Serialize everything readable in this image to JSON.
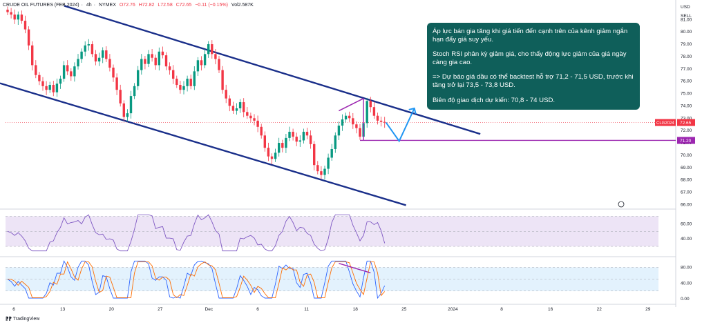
{
  "header": {
    "symbol": "CRUDE OIL FUTURES (FEB 2024)",
    "interval": "4h",
    "exchange": "NYMEX",
    "open": "O72.76",
    "high": "H72.82",
    "low": "L72.58",
    "close": "C72.65",
    "change": "−0.11 (−0.15%)",
    "volume": "Vol2.587K"
  },
  "axis_units": {
    "currency": "USD",
    "action": "SELL"
  },
  "annotation": {
    "p1": "Áp lực bán gia tăng khi giá tiến đến cạnh trên của kênh giảm ngắn hạn đẩy giá suy yếu.",
    "p2": "Stoch RSI phân kỳ giảm giá, cho thấy động lực giảm của giá ngày càng gia cao.",
    "p3": "=> Dự báo giá dầu có thể backtest hỗ trợ 71,2 - 71,5 USD, trước khi tăng trở lại 73,5 - 73,8 USD.",
    "p4": "Biên độ giao dịch dự kiến: 70,8 - 74 USD."
  },
  "footer": {
    "brand": "TradingView"
  },
  "colors": {
    "up": "#089981",
    "down": "#f23645",
    "channel": "#1a2f8a",
    "support": "#9c27b0",
    "forecast": "#2196f3",
    "rsi_band": "#ede4f6",
    "rsi_line": "#7e57c2",
    "stoch_band": "#e3f2fd",
    "stoch_k": "#2962ff",
    "stoch_d": "#ff6d00",
    "annotation_bg": "#0f5f5a"
  },
  "chart_data": {
    "type": "candlestick",
    "y_axis": {
      "ticks": [
        "81.00",
        "80.00",
        "79.00",
        "78.00",
        "77.00",
        "76.00",
        "75.00",
        "74.00",
        "73.00",
        "72.00",
        "71.00",
        "70.00",
        "69.00",
        "68.00",
        "67.00",
        "66.00"
      ],
      "range": [
        65.8,
        81.8
      ]
    },
    "x_axis": {
      "labels": [
        "6",
        "13",
        "20",
        "27",
        "Dec",
        "6",
        "11",
        "18",
        "25",
        "2024",
        "8",
        "16",
        "22",
        "29"
      ]
    },
    "price_labels": [
      {
        "name": "CLG2024",
        "value": 72.65,
        "text": "72.65"
      },
      {
        "name": "support",
        "value": 71.2,
        "text": "71.20"
      }
    ],
    "closes": [
      81.6,
      81.4,
      81.0,
      81.4,
      80.9,
      80.2,
      78.9,
      77.3,
      76.5,
      76.0,
      75.6,
      75.3,
      75.7,
      75.1,
      75.8,
      76.2,
      77.3,
      76.8,
      76.4,
      77.2,
      77.8,
      78.4,
      78.9,
      79.0,
      78.2,
      77.6,
      77.9,
      78.5,
      77.8,
      77.1,
      76.3,
      75.3,
      74.2,
      73.1,
      73.4,
      74.8,
      75.6,
      76.9,
      77.8,
      77.4,
      78.2,
      77.9,
      77.3,
      78.4,
      78.1,
      77.2,
      76.9,
      76.2,
      75.7,
      75.3,
      75.6,
      76.2,
      75.6,
      76.8,
      77.7,
      77.3,
      78.2,
      79.0,
      78.2,
      77.8,
      76.9,
      75.3,
      74.6,
      74.0,
      73.6,
      73.8,
      74.3,
      73.5,
      73.2,
      73.0,
      72.8,
      72.3,
      71.6,
      70.6,
      69.9,
      69.7,
      70.2,
      71.0,
      70.6,
      71.4,
      71.9,
      71.5,
      71.1,
      71.2,
      71.9,
      71.6,
      70.9,
      69.2,
      68.7,
      68.4,
      68.9,
      69.8,
      70.5,
      71.6,
      72.4,
      72.9,
      73.2,
      73.0,
      72.5,
      72.2,
      71.5,
      72.6,
      74.4,
      73.9,
      73.2,
      72.8,
      72.7,
      72.65
    ],
    "forecast_path": [
      {
        "label": "backtest",
        "value": 71.2
      },
      {
        "label": "target",
        "value": 73.8
      }
    ],
    "channel": {
      "upper": [
        [
          0,
          82.0
        ],
        [
          111,
          72.0
        ]
      ],
      "lower": [
        [
          0,
          76.0
        ],
        [
          106,
          66.0
        ]
      ]
    },
    "indicators": [
      {
        "name": "RSI",
        "band": [
          30,
          70
        ],
        "ticks": [
          "60.00",
          "40.00"
        ],
        "range": [
          20,
          75
        ]
      },
      {
        "name": "Stoch RSI",
        "band": [
          20,
          80
        ],
        "ticks": [
          "80.00",
          "40.00",
          "0.00"
        ],
        "range": [
          -5,
          100
        ]
      }
    ]
  }
}
